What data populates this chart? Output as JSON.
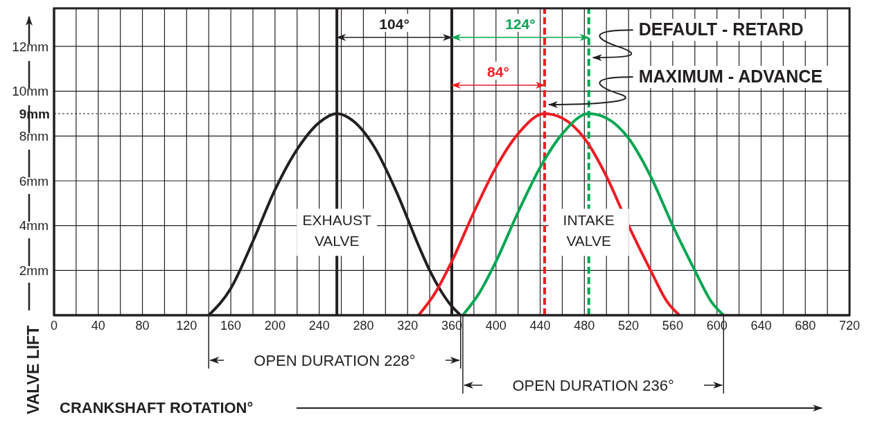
{
  "chart_data": {
    "type": "line",
    "xlabel": "CRANKSHAFT ROTATION°",
    "ylabel": "VALVE LIFT",
    "xlim": [
      0,
      720
    ],
    "ylim": [
      0,
      13.7
    ],
    "xticks": [
      0,
      {
        "value": 20,
        "label": null
      },
      40,
      {
        "value": 60,
        "label": null
      },
      80,
      {
        "value": 100,
        "label": null
      },
      120,
      {
        "value": 140,
        "label": null
      },
      160,
      {
        "value": 180,
        "label": null
      },
      200,
      {
        "value": 220,
        "label": null
      },
      240,
      {
        "value": 260,
        "label": null
      },
      280,
      {
        "value": 300,
        "label": null
      },
      320,
      {
        "value": 340,
        "label": null
      },
      360,
      {
        "value": 380,
        "label": null
      },
      400,
      {
        "value": 420,
        "label": null
      },
      440,
      {
        "value": 460,
        "label": null
      },
      480,
      {
        "value": 500,
        "label": null
      },
      520,
      {
        "value": 540,
        "label": null
      },
      560,
      {
        "value": 580,
        "label": null
      },
      600,
      {
        "value": 620,
        "label": null
      },
      640,
      {
        "value": 660,
        "label": null
      },
      680,
      {
        "value": 700,
        "label": null
      },
      720
    ],
    "yticks": [
      {
        "value": 2,
        "label": "2mm"
      },
      {
        "value": 4,
        "label": "4mm"
      },
      {
        "value": 6,
        "label": "6mm"
      },
      {
        "value": 8,
        "label": "8mm"
      },
      {
        "value": 10,
        "label": "10mm"
      },
      {
        "value": 12,
        "label": "12mm"
      }
    ],
    "grid": true,
    "marker": "none",
    "line_style": "solid",
    "series": [
      {
        "color": "#231f20",
        "x": [
          140,
          160,
          180,
          200,
          220,
          240,
          256,
          270,
          290,
          310,
          330,
          340,
          350,
          360,
          368
        ],
        "values": [
          0,
          1.2,
          3.3,
          5.6,
          7.4,
          8.6,
          9,
          8.7,
          7.5,
          5.5,
          3.1,
          2.0,
          1.1,
          0.4,
          0
        ]
      },
      {
        "color": "#ed1c24",
        "x": [
          330,
          345,
          360,
          380,
          400,
          420,
          444,
          460,
          480,
          500,
          520,
          540,
          555,
          566
        ],
        "values": [
          0,
          1,
          2.4,
          4.6,
          6.6,
          8.1,
          9,
          8.8,
          7.9,
          6.2,
          4.0,
          2.0,
          0.6,
          0
        ]
      },
      {
        "color": "#00a651",
        "x": [
          370,
          385,
          400,
          420,
          440,
          460,
          484,
          500,
          520,
          540,
          560,
          580,
          595,
          606
        ],
        "values": [
          0,
          1,
          2.4,
          4.6,
          6.6,
          8.1,
          9,
          8.8,
          7.9,
          6.2,
          4.0,
          2.0,
          0.6,
          0
        ]
      }
    ],
    "ref_lines": [
      {
        "axis": "y",
        "value": 9,
        "label": "9mm",
        "line_style": "dotted",
        "color": "#231f20"
      },
      {
        "axis": "x",
        "value": 256,
        "color": "#231f20",
        "line_style": "solid"
      },
      {
        "axis": "x",
        "value": 360,
        "color": "#231f20",
        "line_style": "solid"
      },
      {
        "axis": "x",
        "value": 444,
        "color": "#ed1c24",
        "line_style": "dashed"
      },
      {
        "axis": "x",
        "value": 484,
        "color": "#00a651",
        "line_style": "dashed"
      }
    ],
    "annotations": [
      "104°",
      "124°",
      "84°",
      "OPEN DURATION 228°",
      "OPEN DURATION 236°",
      {
        "text": "DEFAULT - RETARD",
        "x": 484,
        "y": 11.5
      },
      {
        "text": "MAXIMUM - ADVANCE",
        "x": 444,
        "y": 9.4
      },
      {
        "text": "EXHAUST\nVALVE",
        "x": 256,
        "y": 3.7
      },
      {
        "text": "INTAKE\nVALVE",
        "x": 484,
        "y": 3.7
      }
    ]
  }
}
